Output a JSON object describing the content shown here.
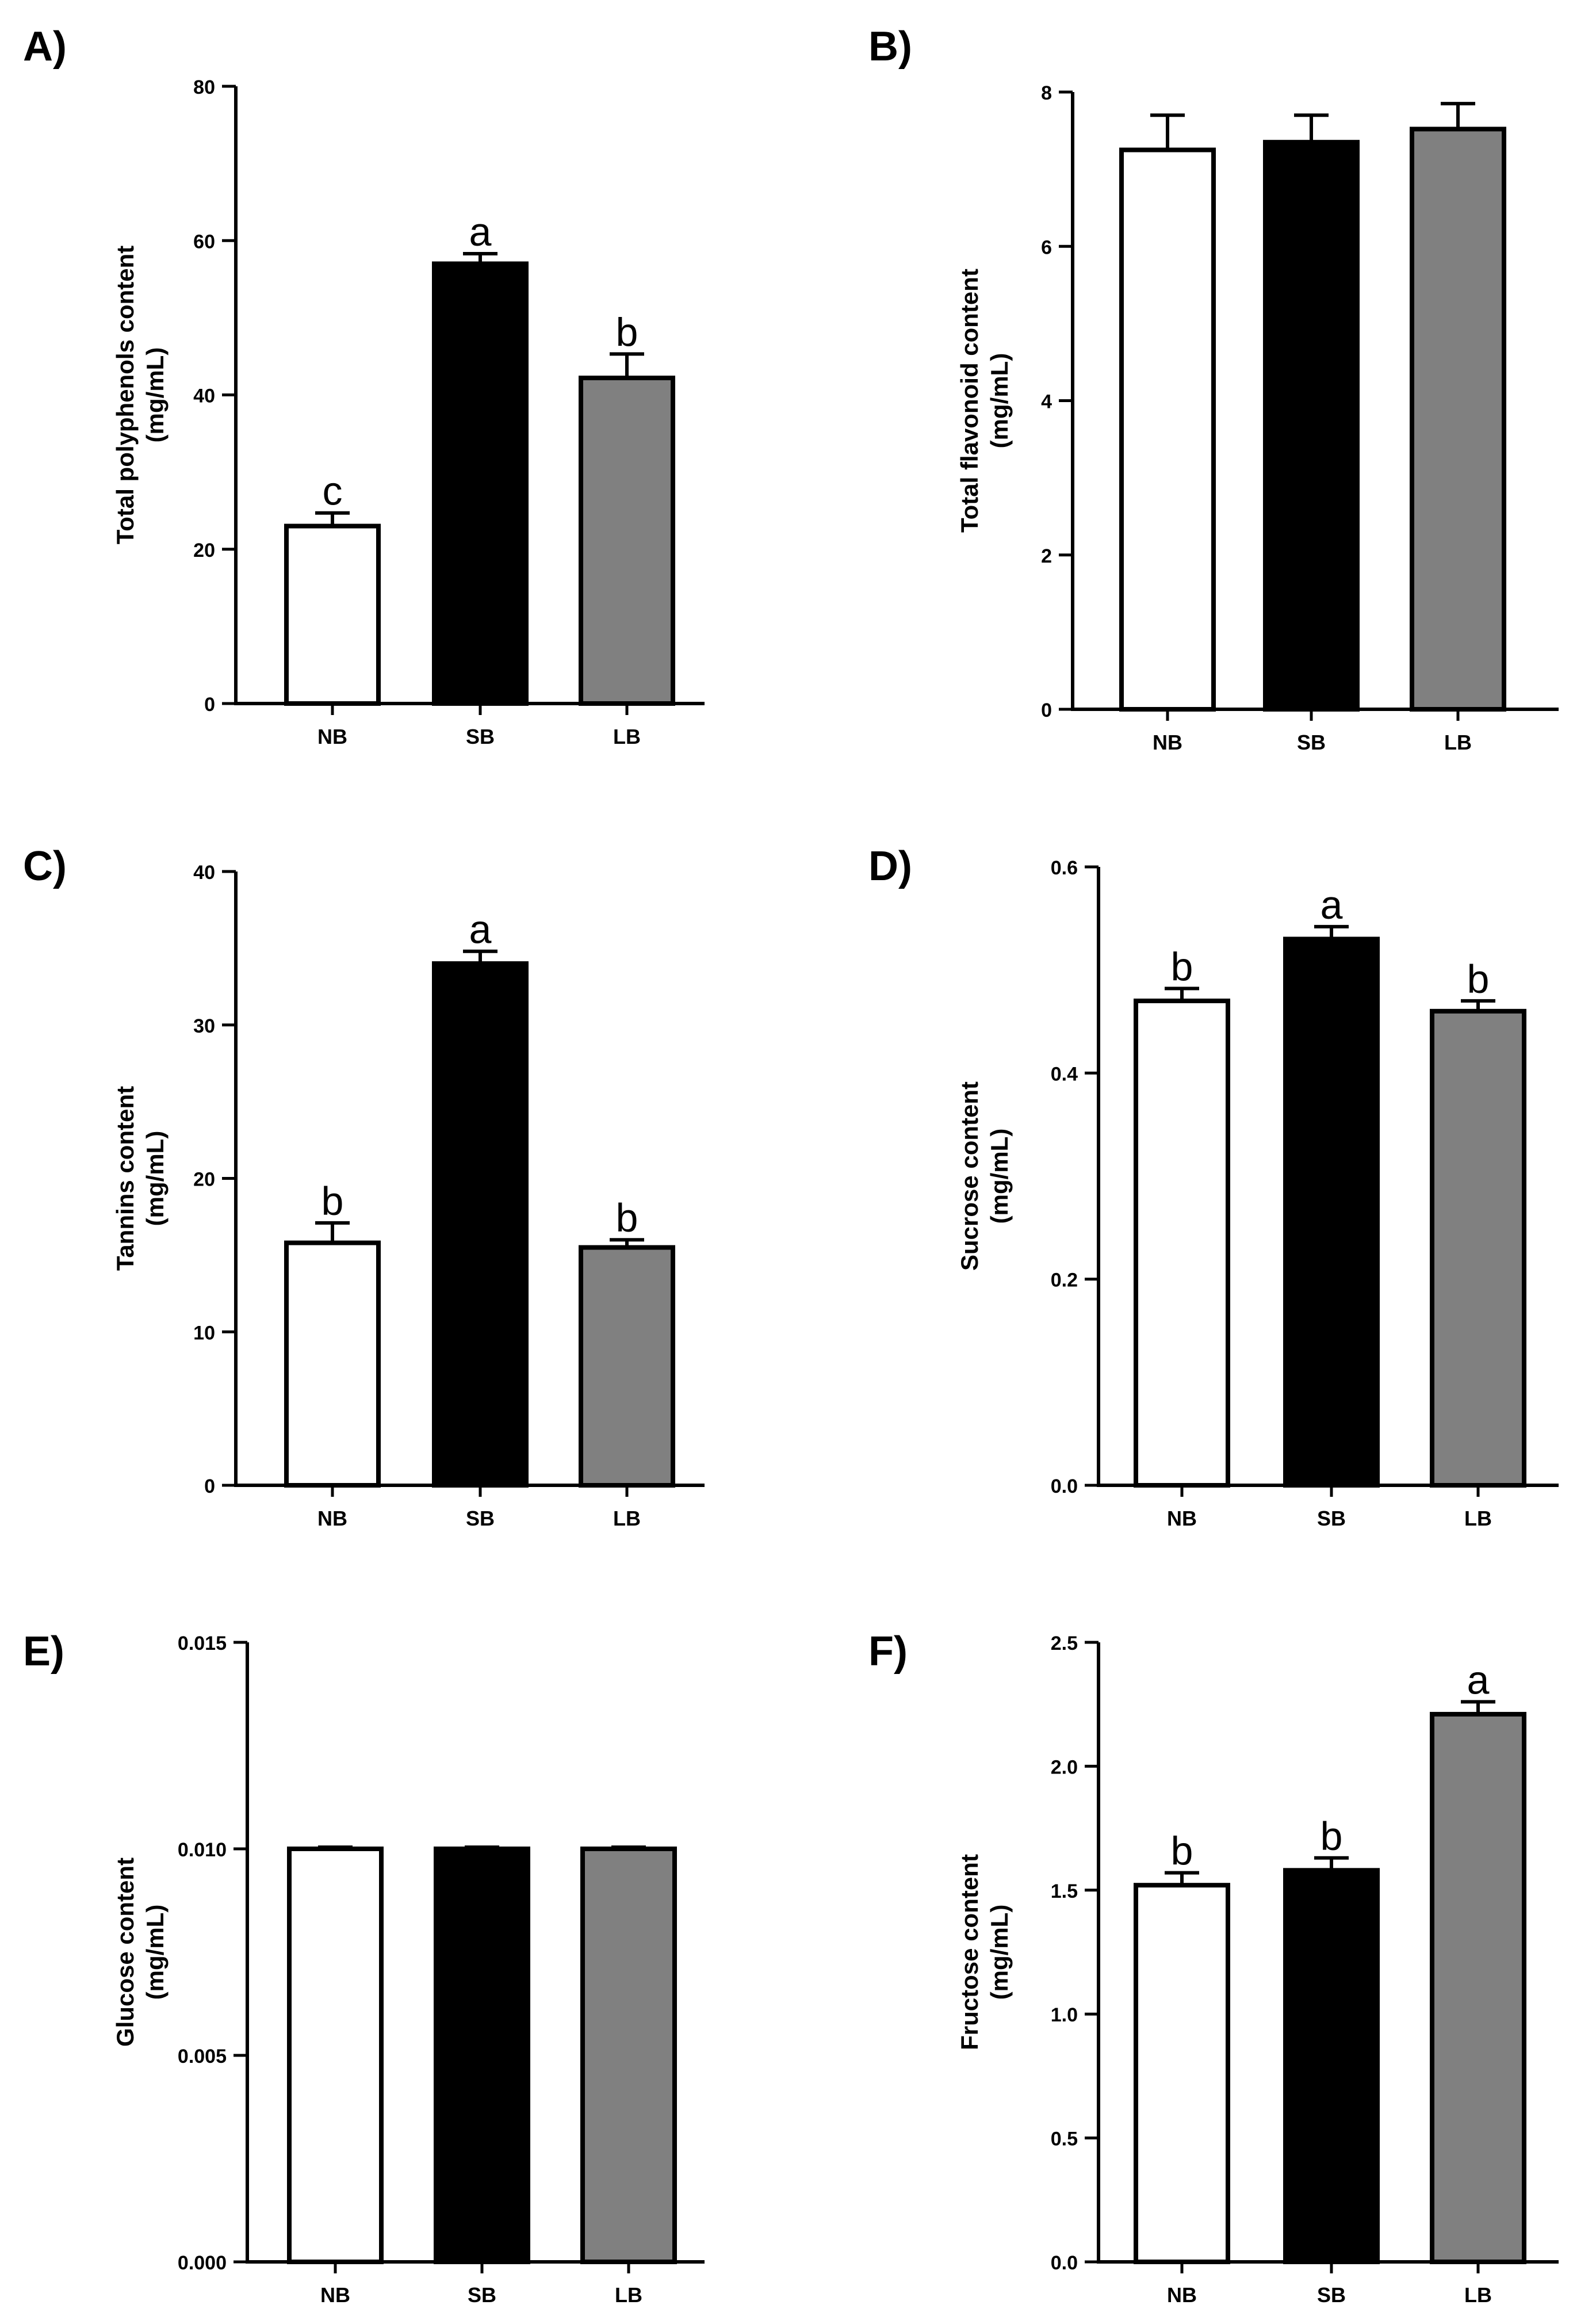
{
  "chart_data": [
    {
      "panel": "A)",
      "type": "bar",
      "title": "",
      "ylabel_line1": "Total polyphenols content",
      "ylabel_line2": "(mg/mL)",
      "categories": [
        "NB",
        "SB",
        "LB"
      ],
      "values": [
        23,
        57,
        42.2
      ],
      "errors": [
        1.7,
        1.3,
        3.1
      ],
      "letters": [
        "c",
        "a",
        "b"
      ],
      "ylim": [
        0,
        80
      ],
      "yticks": [
        0,
        20,
        40,
        60,
        80
      ],
      "ytick_labels": [
        "0",
        "20",
        "40",
        "60",
        "80"
      ],
      "colors": [
        "#ffffff",
        "#000000",
        "#808080"
      ]
    },
    {
      "panel": "B)",
      "type": "bar",
      "title": "",
      "ylabel_line1": "Total flavonoid content",
      "ylabel_line2": "(mg/mL)",
      "categories": [
        "NB",
        "SB",
        "LB"
      ],
      "values": [
        7.25,
        7.35,
        7.52
      ],
      "errors": [
        0.45,
        0.35,
        0.33
      ],
      "letters": [
        "",
        "",
        ""
      ],
      "ylim": [
        0,
        8
      ],
      "yticks": [
        0,
        2,
        4,
        6,
        8
      ],
      "ytick_labels": [
        "0",
        "2",
        "4",
        "6",
        "8"
      ],
      "colors": [
        "#ffffff",
        "#000000",
        "#808080"
      ]
    },
    {
      "panel": "C)",
      "type": "bar",
      "title": "",
      "ylabel_line1": "Tannins content",
      "ylabel_line2": "(mg/mL)",
      "categories": [
        "NB",
        "SB",
        "LB"
      ],
      "values": [
        15.8,
        34,
        15.5
      ],
      "errors": [
        1.3,
        0.8,
        0.5
      ],
      "letters": [
        "b",
        "a",
        "b"
      ],
      "ylim": [
        0,
        40
      ],
      "yticks": [
        0,
        10,
        20,
        30,
        40
      ],
      "ytick_labels": [
        "0",
        "10",
        "20",
        "30",
        "40"
      ],
      "colors": [
        "#ffffff",
        "#000000",
        "#808080"
      ]
    },
    {
      "panel": "D)",
      "type": "bar",
      "title": "",
      "ylabel_line1": "Sucrose content",
      "ylabel_line2": "(mg/mL)",
      "categories": [
        "NB",
        "SB",
        "LB"
      ],
      "values": [
        0.47,
        0.53,
        0.46
      ],
      "errors": [
        0.012,
        0.012,
        0.01
      ],
      "letters": [
        "b",
        "a",
        "b"
      ],
      "ylim": [
        0,
        0.6
      ],
      "yticks": [
        0,
        0.2,
        0.4,
        0.6
      ],
      "ytick_labels": [
        "0.0",
        "0.2",
        "0.4",
        "0.6"
      ],
      "colors": [
        "#ffffff",
        "#000000",
        "#808080"
      ]
    },
    {
      "panel": "E)",
      "type": "bar",
      "title": "",
      "ylabel_line1": "Glucose content",
      "ylabel_line2": "(mg/mL)",
      "categories": [
        "NB",
        "SB",
        "LB"
      ],
      "values": [
        0.01,
        0.01,
        0.01
      ],
      "errors": [
        4e-05,
        4e-05,
        4e-05
      ],
      "letters": [
        "",
        "",
        ""
      ],
      "ylim": [
        0,
        0.015
      ],
      "yticks": [
        0,
        0.005,
        0.01,
        0.015
      ],
      "ytick_labels": [
        "0.000",
        "0.005",
        "0.010",
        "0.015"
      ],
      "colors": [
        "#ffffff",
        "#000000",
        "#808080"
      ]
    },
    {
      "panel": "F)",
      "type": "bar",
      "title": "",
      "ylabel_line1": "Fructose content",
      "ylabel_line2": "(mg/mL)",
      "categories": [
        "NB",
        "SB",
        "LB"
      ],
      "values": [
        1.52,
        1.58,
        2.21
      ],
      "errors": [
        0.05,
        0.05,
        0.05
      ],
      "letters": [
        "b",
        "b",
        "a"
      ],
      "ylim": [
        0,
        2.5
      ],
      "yticks": [
        0,
        0.5,
        1,
        1.5,
        2,
        2.5
      ],
      "ytick_labels": [
        "0.0",
        "0.5",
        "1.0",
        "1.5",
        "2.0",
        "2.5"
      ],
      "colors": [
        "#ffffff",
        "#000000",
        "#808080"
      ]
    }
  ]
}
